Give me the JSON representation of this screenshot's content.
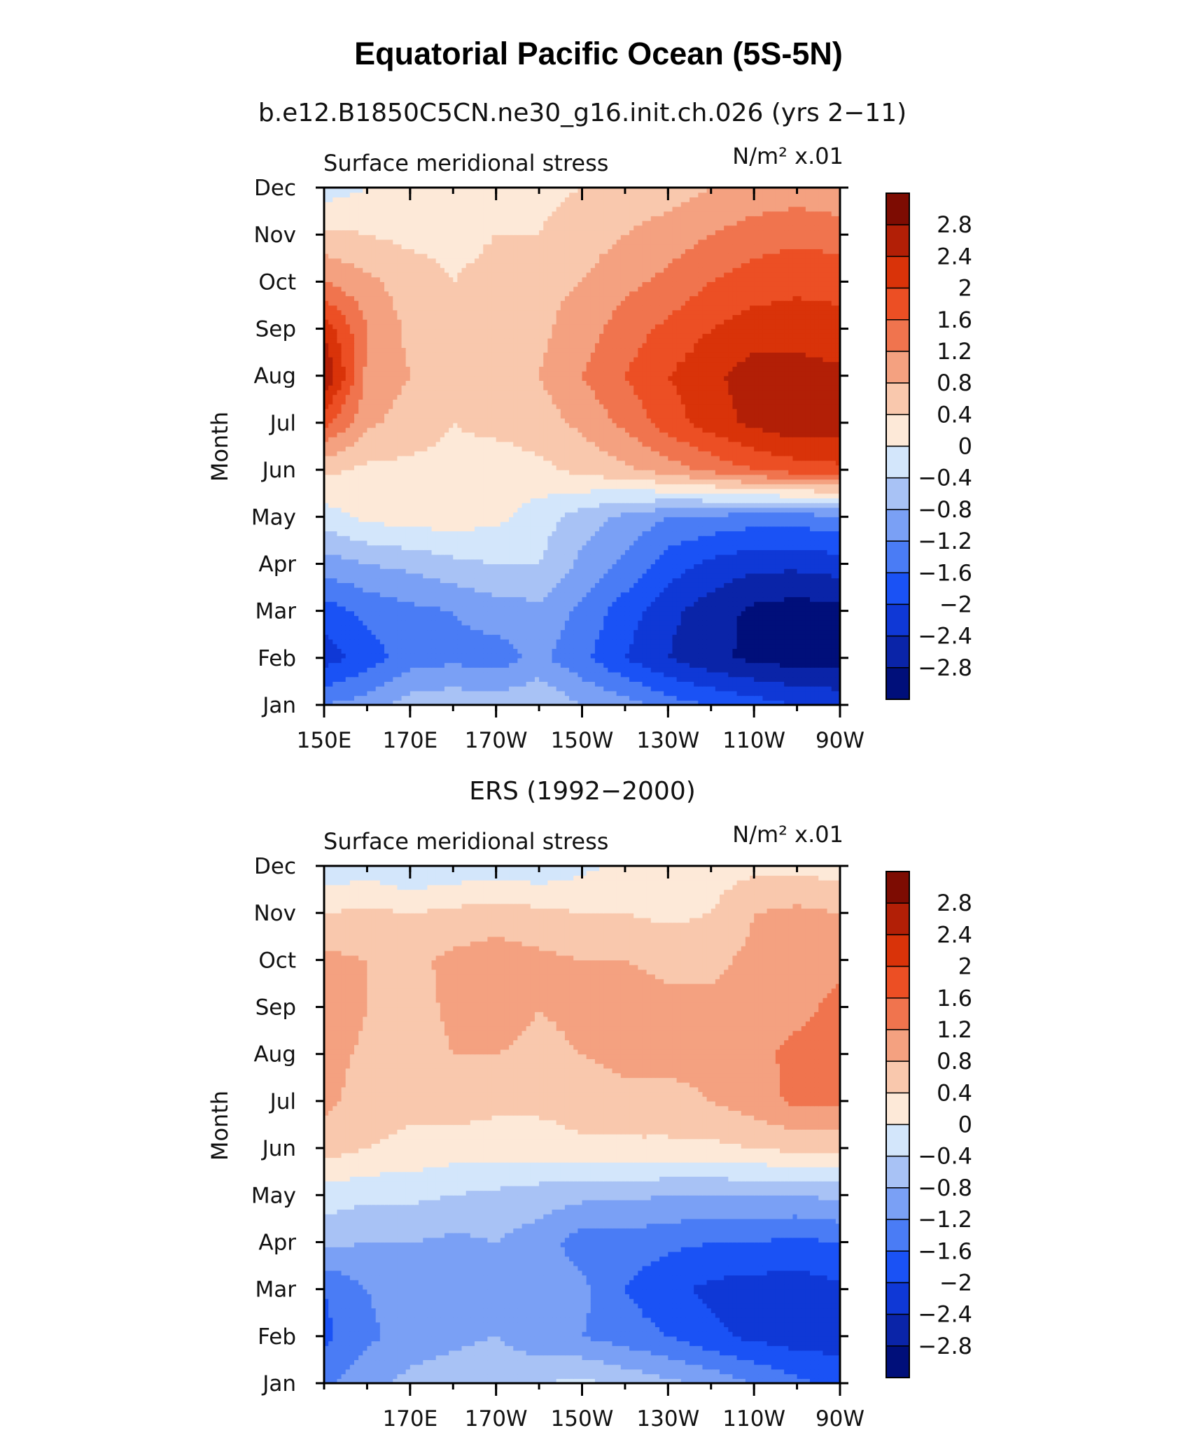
{
  "title": "Equatorial Pacific Ocean (5S-5N)",
  "chart_data": [
    {
      "type": "heatmap",
      "subtitle": "b.e12.B1850C5CN.ne30_g16.init.ch.026 (yrs 2−11)",
      "left_label": "Surface meridional stress",
      "right_label": "N/m² x.01",
      "ylabel": "Month",
      "y_ticks": [
        "Jan",
        "Feb",
        "Mar",
        "Apr",
        "May",
        "Jun",
        "Jul",
        "Aug",
        "Sep",
        "Oct",
        "Nov",
        "Dec"
      ],
      "x_ticks": [
        "150E",
        "170E",
        "170W",
        "150W",
        "130W",
        "110W",
        "90W"
      ],
      "x_range": [
        150,
        270
      ],
      "x_units": "degrees east longitude",
      "x_tick_values": [
        150,
        170,
        190,
        210,
        230,
        250,
        270
      ],
      "colorbar_labels": [
        "2.8",
        "2.4",
        "2",
        "1.6",
        "1.2",
        "0.8",
        "0.4",
        "0",
        "−0.4",
        "−0.8",
        "−1.2",
        "−1.6",
        "−2",
        "−2.4",
        "−2.8"
      ],
      "x": [
        150,
        160,
        170,
        180,
        190,
        200,
        210,
        220,
        230,
        240,
        250,
        260,
        270
      ],
      "z": [
        [
          -1.2,
          -1.0,
          -0.6,
          -0.5,
          -0.6,
          -0.4,
          -0.8,
          -1.0,
          -1.4,
          -1.6,
          -1.8,
          -2.0,
          -2.1
        ],
        [
          -2.2,
          -1.8,
          -1.4,
          -1.3,
          -1.4,
          -1.1,
          -1.5,
          -2.0,
          -2.4,
          -2.7,
          -2.9,
          -3.0,
          -3.0
        ],
        [
          -1.8,
          -1.5,
          -1.3,
          -1.2,
          -1.0,
          -0.9,
          -1.3,
          -1.8,
          -2.3,
          -2.6,
          -2.9,
          -3.0,
          -2.9
        ],
        [
          -1.0,
          -0.8,
          -0.7,
          -0.5,
          -0.4,
          -0.4,
          -0.9,
          -1.3,
          -1.8,
          -2.1,
          -2.3,
          -2.3,
          -2.2
        ],
        [
          -0.2,
          0.1,
          0.2,
          0.2,
          0.1,
          -0.2,
          -0.6,
          -0.9,
          -1.2,
          -1.3,
          -1.4,
          -1.4,
          -1.3
        ],
        [
          0.5,
          0.3,
          0.3,
          0.3,
          0.2,
          0.3,
          0.5,
          0.7,
          1.0,
          1.3,
          1.6,
          1.8,
          1.9
        ],
        [
          1.7,
          0.9,
          0.6,
          0.4,
          0.5,
          0.6,
          0.9,
          1.3,
          1.8,
          2.2,
          2.5,
          2.7,
          2.6
        ],
        [
          2.8,
          1.1,
          0.8,
          0.5,
          0.5,
          0.8,
          1.2,
          1.6,
          2.0,
          2.3,
          2.6,
          2.6,
          2.5
        ],
        [
          2.3,
          1.2,
          0.7,
          0.5,
          0.4,
          0.7,
          1.0,
          1.4,
          1.7,
          2.0,
          2.2,
          2.2,
          2.1
        ],
        [
          1.2,
          0.9,
          0.6,
          0.4,
          0.5,
          0.7,
          0.8,
          1.1,
          1.3,
          1.6,
          1.8,
          1.9,
          1.9
        ],
        [
          0.5,
          0.4,
          0.3,
          0.3,
          0.4,
          0.4,
          0.6,
          0.8,
          1.0,
          1.2,
          1.4,
          1.5,
          1.4
        ],
        [
          -0.2,
          0.0,
          0.1,
          0.2,
          0.2,
          0.3,
          0.4,
          0.5,
          0.6,
          0.8,
          0.9,
          1.0,
          0.9
        ]
      ]
    },
    {
      "type": "heatmap",
      "subtitle": "ERS (1992−2000)",
      "left_label": "Surface meridional stress",
      "right_label": "N/m² x.01",
      "ylabel": "Month",
      "y_ticks": [
        "Jan",
        "Feb",
        "Mar",
        "Apr",
        "May",
        "Jun",
        "Jul",
        "Aug",
        "Sep",
        "Oct",
        "Nov",
        "Dec"
      ],
      "x_ticks": [
        "170E",
        "170W",
        "150W",
        "130W",
        "110W",
        "90W"
      ],
      "x_range": [
        150,
        270
      ],
      "x_units": "degrees east longitude",
      "x_tick_values": [
        170,
        190,
        210,
        230,
        250,
        270
      ],
      "colorbar_labels": [
        "2.8",
        "2.4",
        "2",
        "1.6",
        "1.2",
        "0.8",
        "0.4",
        "0",
        "−0.4",
        "−0.8",
        "−1.2",
        "−1.6",
        "−2",
        "−2.4",
        "−2.8"
      ],
      "x": [
        150,
        160,
        170,
        180,
        190,
        200,
        210,
        220,
        230,
        240,
        250,
        260,
        270
      ],
      "z": [
        [
          -1.3,
          -0.9,
          -0.7,
          -0.6,
          -0.5,
          -0.4,
          -0.3,
          -0.5,
          -0.7,
          -0.9,
          -1.2,
          -1.5,
          -1.7
        ],
        [
          -1.7,
          -1.3,
          -1.0,
          -0.9,
          -0.8,
          -1.1,
          -1.2,
          -1.4,
          -1.6,
          -1.9,
          -2.1,
          -2.2,
          -2.2
        ],
        [
          -1.6,
          -1.2,
          -1.0,
          -1.1,
          -0.9,
          -1.0,
          -1.1,
          -1.6,
          -1.9,
          -2.1,
          -2.2,
          -2.2,
          -2.1
        ],
        [
          -0.7,
          -0.8,
          -0.8,
          -0.9,
          -0.8,
          -1.0,
          -1.4,
          -1.4,
          -1.5,
          -1.6,
          -1.6,
          -1.7,
          -1.6
        ],
        [
          -0.2,
          -0.3,
          -0.3,
          -0.4,
          -0.5,
          -0.6,
          -0.7,
          -0.7,
          -0.8,
          -0.8,
          -0.8,
          -0.8,
          -0.7
        ],
        [
          0.6,
          0.4,
          0.3,
          0.2,
          0.2,
          0.2,
          0.3,
          0.3,
          0.3,
          0.3,
          0.4,
          0.5,
          0.5
        ],
        [
          0.9,
          0.6,
          0.5,
          0.6,
          0.5,
          0.5,
          0.6,
          0.7,
          0.7,
          0.8,
          1.0,
          1.3,
          1.3
        ],
        [
          1.0,
          0.7,
          0.6,
          0.8,
          0.8,
          0.7,
          0.8,
          0.9,
          0.9,
          0.9,
          1.1,
          1.3,
          1.4
        ],
        [
          1.2,
          0.8,
          0.6,
          0.9,
          1.0,
          0.8,
          0.9,
          1.0,
          0.9,
          0.9,
          1.0,
          1.1,
          1.3
        ],
        [
          0.9,
          0.8,
          0.7,
          0.9,
          1.0,
          0.9,
          0.8,
          0.8,
          0.7,
          0.7,
          0.9,
          1.0,
          1.1
        ],
        [
          0.4,
          0.5,
          0.4,
          0.5,
          0.6,
          0.5,
          0.4,
          0.4,
          0.3,
          0.4,
          0.8,
          0.9,
          0.8
        ],
        [
          -0.3,
          -0.2,
          -0.4,
          -0.3,
          -0.2,
          -0.3,
          -0.1,
          0.1,
          0.2,
          0.2,
          0.3,
          0.3,
          0.2
        ]
      ]
    }
  ],
  "colors": {
    "levels": [
      -2.8,
      -2.4,
      -2.0,
      -1.6,
      -1.2,
      -0.8,
      -0.4,
      0,
      0.4,
      0.8,
      1.2,
      1.6,
      2.0,
      2.4,
      2.8
    ],
    "palette": [
      "#000f7a",
      "#0a24a8",
      "#0f38d6",
      "#1a52f5",
      "#4a7cf5",
      "#7aa0f5",
      "#a8c2f5",
      "#d3e6fb",
      "#fde9d8",
      "#f9c8ad",
      "#f4a180",
      "#f0744e",
      "#ec4f24",
      "#d93309",
      "#b21f06",
      "#7d0c02"
    ]
  }
}
